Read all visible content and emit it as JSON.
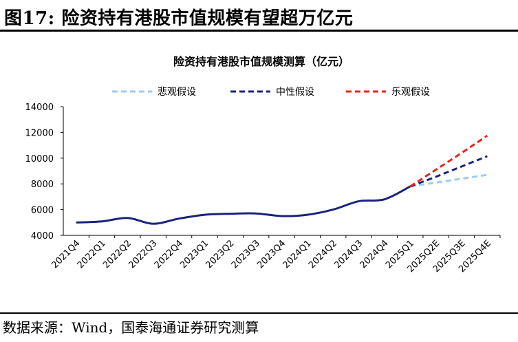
{
  "figure": {
    "title": "图17:  险资持有港股市值规模有望超万亿元",
    "source": "数据来源：Wind，国泰海通证券研究测算"
  },
  "chart_data": {
    "type": "line",
    "title": "险资持有港股市值规模测算（亿元）",
    "xlabel": "",
    "ylabel": "",
    "ylim": [
      4000,
      14000
    ],
    "yticks": [
      4000,
      6000,
      8000,
      10000,
      12000,
      14000
    ],
    "grid": false,
    "legend_position": "top",
    "categories": [
      "2021Q4",
      "2022Q1",
      "2022Q2",
      "2022Q3",
      "2022Q4",
      "2023Q1",
      "2023Q2",
      "2023Q3",
      "2023Q4",
      "2024Q1",
      "2024Q2",
      "2024Q3",
      "2024Q4",
      "2025Q1",
      "2025Q2E",
      "2025Q3E",
      "2025Q4E"
    ],
    "series": [
      {
        "name": "",
        "style": "solid",
        "color": "#1a237e",
        "values": [
          5000,
          5080,
          5350,
          4900,
          5300,
          5600,
          5680,
          5700,
          5500,
          5600,
          6000,
          6650,
          6800,
          7800,
          null,
          null,
          null
        ]
      },
      {
        "name": "悲观假设",
        "style": "dashed",
        "color": "#9ecbf2",
        "values": [
          null,
          null,
          null,
          null,
          null,
          null,
          null,
          null,
          null,
          null,
          null,
          null,
          null,
          7800,
          8100,
          8400,
          8700
        ]
      },
      {
        "name": "中性假设",
        "style": "dashed",
        "color": "#1a237e",
        "values": [
          null,
          null,
          null,
          null,
          null,
          null,
          null,
          null,
          null,
          null,
          null,
          null,
          null,
          7800,
          8550,
          9350,
          10150
        ]
      },
      {
        "name": "乐观假设",
        "style": "dashed",
        "color": "#e8231d",
        "values": [
          null,
          null,
          null,
          null,
          null,
          null,
          null,
          null,
          null,
          null,
          null,
          null,
          null,
          7800,
          9100,
          10400,
          11750
        ]
      }
    ]
  }
}
